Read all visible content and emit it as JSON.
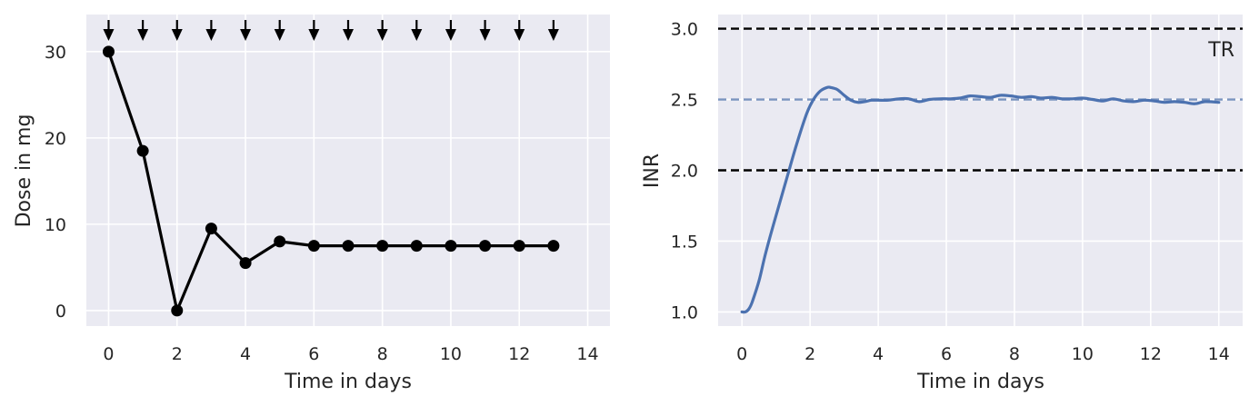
{
  "chart_data": [
    {
      "type": "line",
      "title": "",
      "xlabel": "Time in days",
      "ylabel": "Dose in mg",
      "xlim": [
        -0.65,
        14.65
      ],
      "ylim": [
        -1.8,
        34.3
      ],
      "xticks": [
        0,
        2,
        4,
        6,
        8,
        10,
        12,
        14
      ],
      "yticks": [
        0,
        10,
        20,
        30
      ],
      "grid": true,
      "series": [
        {
          "color": "#000000",
          "marker": "circle",
          "x": [
            0,
            1,
            2,
            3,
            4,
            5,
            6,
            7,
            8,
            9,
            10,
            11,
            12,
            13
          ],
          "y": [
            30,
            18.5,
            0,
            9.5,
            5.5,
            8,
            7.5,
            7.5,
            7.5,
            7.5,
            7.5,
            7.5,
            7.5,
            7.5
          ]
        }
      ],
      "dose_arrows": {
        "x": [
          0,
          1,
          2,
          3,
          4,
          5,
          6,
          7,
          8,
          9,
          10,
          11,
          12,
          13
        ],
        "color": "#000000"
      }
    },
    {
      "type": "line",
      "title": "",
      "xlabel": "Time in days",
      "ylabel": "INR",
      "xlim": [
        -0.7,
        14.7
      ],
      "ylim": [
        0.9,
        3.1
      ],
      "xticks": [
        0,
        2,
        4,
        6,
        8,
        10,
        12,
        14
      ],
      "yticks": [
        1.0,
        1.5,
        2.0,
        2.5,
        3.0
      ],
      "grid": true,
      "series": [
        {
          "color": "#4c72b0",
          "x": [
            0,
            0.1,
            0.2,
            0.3,
            0.5,
            0.7,
            1.0,
            1.3,
            1.6,
            1.9,
            2.1,
            2.3,
            2.5,
            2.6,
            2.8,
            3.0,
            3.2,
            3.4,
            3.6,
            3.8,
            4.0,
            4.3,
            4.6,
            4.9,
            5.2,
            5.5,
            5.8,
            6.1,
            6.4,
            6.7,
            7.0,
            7.3,
            7.6,
            7.9,
            8.2,
            8.5,
            8.8,
            9.1,
            9.4,
            9.7,
            10.0,
            10.3,
            10.6,
            10.9,
            11.2,
            11.5,
            11.8,
            12.1,
            12.4,
            12.7,
            13.0,
            13.3,
            13.6,
            14.0
          ],
          "y": [
            1.0,
            1.0,
            1.02,
            1.07,
            1.22,
            1.42,
            1.68,
            1.93,
            2.18,
            2.4,
            2.5,
            2.56,
            2.585,
            2.585,
            2.57,
            2.53,
            2.495,
            2.48,
            2.485,
            2.495,
            2.495,
            2.495,
            2.505,
            2.505,
            2.485,
            2.5,
            2.505,
            2.505,
            2.51,
            2.525,
            2.52,
            2.515,
            2.53,
            2.525,
            2.515,
            2.52,
            2.51,
            2.515,
            2.505,
            2.505,
            2.51,
            2.5,
            2.49,
            2.505,
            2.49,
            2.485,
            2.495,
            2.49,
            2.48,
            2.485,
            2.48,
            2.47,
            2.485,
            2.48
          ]
        }
      ],
      "hlines": [
        {
          "y": 3.0,
          "color": "#000000",
          "style": "dashed"
        },
        {
          "y": 2.0,
          "color": "#000000",
          "style": "dashed"
        },
        {
          "y": 2.5,
          "color": "#7a94bf",
          "style": "dashed"
        }
      ],
      "annotation": "TR"
    }
  ]
}
